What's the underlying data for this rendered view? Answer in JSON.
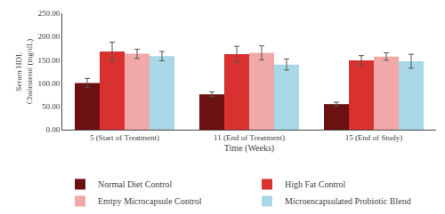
{
  "chart_data": {
    "type": "bar",
    "categories": [
      "5 (Start of Treatment)",
      "11 (End of Treatment)",
      "15 (End of Study)"
    ],
    "series": [
      {
        "name": "Normal Diet Control",
        "color": "#6b1111",
        "values": [
          100,
          76,
          55
        ],
        "errors": [
          10,
          5,
          4
        ]
      },
      {
        "name": "High Fat Control",
        "color": "#d93030",
        "values": [
          168,
          162,
          149
        ],
        "errors": [
          20,
          17,
          10
        ]
      },
      {
        "name": "Emtpy Microcapsule Control",
        "color": "#f0a8a8",
        "values": [
          163,
          165,
          157
        ],
        "errors": [
          10,
          15,
          8
        ]
      },
      {
        "name": "Microencapsulated Probiotic Blend",
        "color": "#a8d8e8",
        "values": [
          158,
          140,
          147
        ],
        "errors": [
          10,
          12,
          15
        ]
      }
    ],
    "xlabel": "Time (Weeks)",
    "ylabel": "Serum HDL\nCholesterol (mg/dL)",
    "ylim": [
      0,
      250
    ],
    "yticks": [
      {
        "value": 0,
        "label": "0.00"
      },
      {
        "value": 50,
        "label": "50.00"
      },
      {
        "value": 100,
        "label": "100.00"
      },
      {
        "value": 150,
        "label": "150.00"
      },
      {
        "value": 200,
        "label": "200.00"
      },
      {
        "value": 250,
        "label": "250.00"
      }
    ],
    "grid": false,
    "legend": "bottom"
  }
}
